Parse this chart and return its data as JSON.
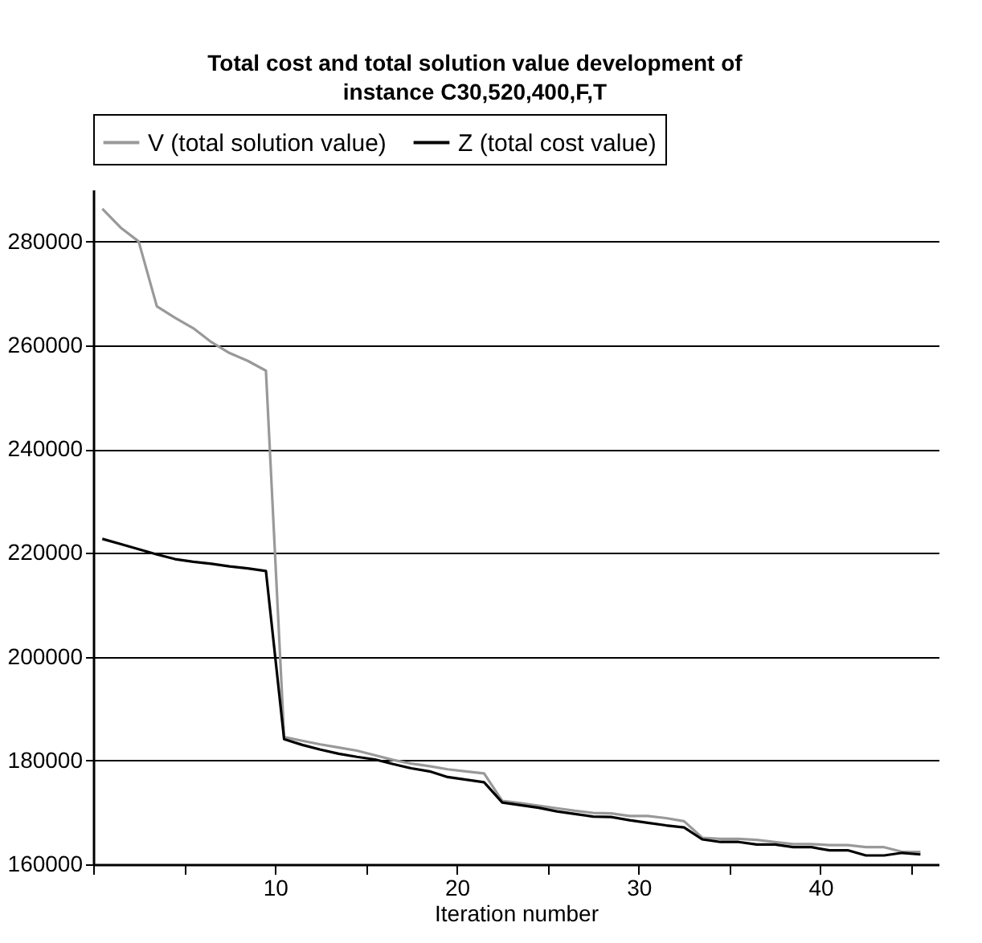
{
  "chart_data": {
    "type": "line",
    "title": "Total cost and total solution value development of instance C30,520,400,F,T",
    "xlabel": "Iteration number",
    "x": [
      0.5,
      1.5,
      2.5,
      3.5,
      4.5,
      5.5,
      6.5,
      7.5,
      8.5,
      9.5,
      10.5,
      11.5,
      12.5,
      13.5,
      14.5,
      15.5,
      16.5,
      17.5,
      18.5,
      19.5,
      20.5,
      21.5,
      22.5,
      23.5,
      24.5,
      25.5,
      26.5,
      27.5,
      28.5,
      29.5,
      30.5,
      31.5,
      32.5,
      33.5,
      34.5,
      35.5,
      36.5,
      37.5,
      38.5,
      39.5,
      40.5,
      41.5,
      42.5,
      43.5,
      44.5,
      45.5
    ],
    "series": [
      {
        "name": "V (total solution value)",
        "color": "#999999",
        "values": [
          286300,
          282700,
          280000,
          267500,
          265300,
          263300,
          260600,
          258500,
          257000,
          255100,
          184500,
          183800,
          183100,
          182500,
          181900,
          181000,
          180100,
          179400,
          178900,
          178300,
          177900,
          177500,
          172200,
          171800,
          171300,
          170800,
          170300,
          169900,
          169800,
          169300,
          169300,
          168900,
          168300,
          165100,
          164900,
          164900,
          164700,
          164300,
          163900,
          163900,
          163700,
          163700,
          163300,
          163300,
          162400,
          162400
        ]
      },
      {
        "name": "Z (total cost value)",
        "color": "#000000",
        "values": [
          222700,
          221700,
          220700,
          219700,
          218800,
          218300,
          217900,
          217400,
          217000,
          216500,
          184100,
          183000,
          182100,
          181300,
          180700,
          180200,
          179300,
          178500,
          177900,
          176800,
          176300,
          175800,
          171900,
          171400,
          170900,
          170200,
          169700,
          169200,
          169100,
          168500,
          168000,
          167500,
          167100,
          164800,
          164300,
          164300,
          163800,
          163800,
          163300,
          163300,
          162700,
          162700,
          161700,
          161700,
          162200,
          161900
        ]
      }
    ],
    "xlim": [
      0,
      46.5
    ],
    "xticks": [
      {
        "value": 0,
        "label": null
      },
      {
        "value": 5,
        "label": null
      },
      10,
      {
        "value": 15,
        "label": null
      },
      20,
      {
        "value": 25,
        "label": null
      },
      30,
      {
        "value": 35,
        "label": null
      },
      40,
      {
        "value": 45,
        "label": null
      }
    ],
    "ylim": [
      160000,
      290000
    ],
    "yticks": [
      160000,
      180000,
      200000,
      220000,
      240000,
      260000,
      280000
    ],
    "grid": "y",
    "legend": "top",
    "marker": "none",
    "line_style": "solid"
  }
}
